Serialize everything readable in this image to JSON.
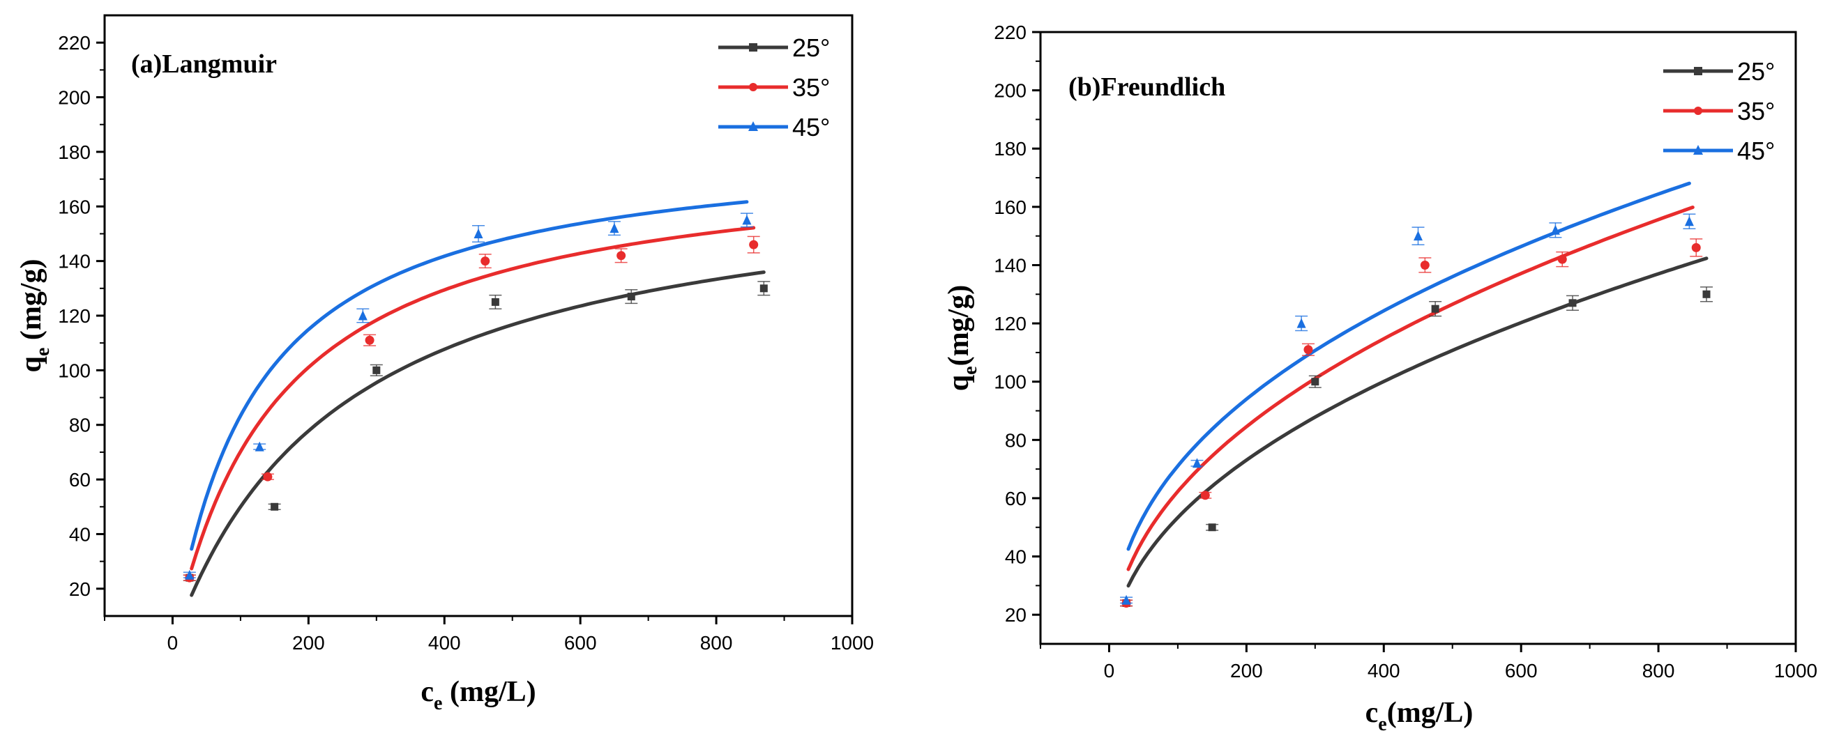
{
  "colors": {
    "s25": "#3a3a3a",
    "s35": "#e82c2c",
    "s45": "#1a6fe0"
  },
  "chart_data": [
    {
      "type": "scatter",
      "title": "(a)Langmuir",
      "xlabel_main": "c",
      "xlabel_sub": "e",
      "xlabel_rest": " (mg/L)",
      "ylabel_main": "q",
      "ylabel_sub": "e",
      "ylabel_rest": " (mg/g)",
      "xlim": [
        -100,
        1000
      ],
      "ylim": [
        10,
        230
      ],
      "xticks": [
        0,
        200,
        400,
        600,
        800,
        1000
      ],
      "yticks": [
        20,
        40,
        60,
        80,
        100,
        120,
        140,
        160,
        180,
        200,
        220
      ],
      "legend_position": "top-right",
      "series": [
        {
          "name": "25°",
          "color_key": "s25",
          "marker": "square",
          "points": [
            [
              25,
              24
            ],
            [
              150,
              50
            ],
            [
              300,
              100
            ],
            [
              475,
              125
            ],
            [
              675,
              127
            ],
            [
              870,
              130
            ]
          ],
          "errors": [
            1,
            1,
            2,
            2.5,
            2.5,
            2.5
          ],
          "fit": {
            "model": "langmuir",
            "qm": 175,
            "k": 0.004,
            "xmin": 28,
            "xmax": 870
          }
        },
        {
          "name": "35°",
          "color_key": "s35",
          "marker": "circle",
          "points": [
            [
              25,
              24
            ],
            [
              140,
              61
            ],
            [
              290,
              111
            ],
            [
              460,
              140
            ],
            [
              660,
              142
            ],
            [
              855,
              146
            ]
          ],
          "errors": [
            1,
            1,
            2,
            2.5,
            2.5,
            3
          ],
          "fit": {
            "model": "langmuir",
            "qm": 180,
            "k": 0.0064,
            "xmin": 28,
            "xmax": 855
          }
        },
        {
          "name": "45°",
          "color_key": "s45",
          "marker": "triangle",
          "points": [
            [
              25,
              25
            ],
            [
              128,
              72
            ],
            [
              280,
              120
            ],
            [
              450,
              150
            ],
            [
              650,
              152
            ],
            [
              845,
              155
            ]
          ],
          "errors": [
            1,
            1,
            2.5,
            3,
            2.5,
            2.5
          ],
          "fit": {
            "model": "langmuir",
            "qm": 185,
            "k": 0.0082,
            "xmin": 28,
            "xmax": 845
          }
        }
      ]
    },
    {
      "type": "scatter",
      "title": "(b)Freundlich",
      "xlabel_main": "c",
      "xlabel_sub": "e",
      "xlabel_rest": "(mg/L)",
      "ylabel_main": "q",
      "ylabel_sub": "e",
      "ylabel_rest": "(mg/g)",
      "xlim": [
        -100,
        1000
      ],
      "ylim": [
        10,
        220
      ],
      "xticks": [
        0,
        200,
        400,
        600,
        800,
        1000
      ],
      "yticks": [
        20,
        40,
        60,
        80,
        100,
        120,
        140,
        160,
        180,
        200,
        220
      ],
      "legend_position": "top-right",
      "series": [
        {
          "name": "25°",
          "color_key": "s25",
          "marker": "square",
          "points": [
            [
              25,
              24
            ],
            [
              150,
              50
            ],
            [
              300,
              100
            ],
            [
              475,
              125
            ],
            [
              675,
              127
            ],
            [
              870,
              130
            ]
          ],
          "errors": [
            1,
            1,
            2,
            2.5,
            2.5,
            2.5
          ],
          "fit": {
            "model": "freundlich",
            "kf": 6.61,
            "n": 2.205,
            "xmin": 28,
            "xmax": 870
          }
        },
        {
          "name": "35°",
          "color_key": "s35",
          "marker": "circle",
          "points": [
            [
              25,
              24
            ],
            [
              140,
              61
            ],
            [
              290,
              111
            ],
            [
              460,
              140
            ],
            [
              660,
              142
            ],
            [
              855,
              146
            ]
          ],
          "errors": [
            1,
            1,
            2,
            2.5,
            2.5,
            3
          ],
          "fit": {
            "model": "freundlich",
            "kf": 8.21,
            "n": 2.272,
            "xmin": 28,
            "xmax": 850
          }
        },
        {
          "name": "45°",
          "color_key": "s45",
          "marker": "triangle",
          "points": [
            [
              25,
              25
            ],
            [
              128,
              72
            ],
            [
              280,
              120
            ],
            [
              450,
              150
            ],
            [
              650,
              152
            ],
            [
              845,
              155
            ]
          ],
          "errors": [
            1,
            1,
            2.5,
            3,
            2.5,
            2.5
          ],
          "fit": {
            "model": "freundlich",
            "kf": 11.1,
            "n": 2.48,
            "xmin": 28,
            "xmax": 845
          }
        }
      ]
    }
  ]
}
